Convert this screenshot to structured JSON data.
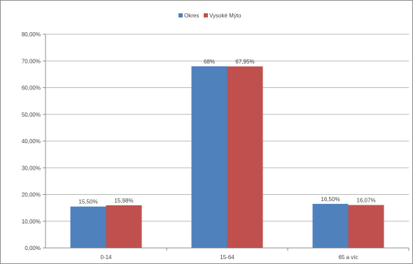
{
  "chart_data": {
    "type": "bar",
    "categories": [
      "0-14",
      "15-64",
      "65 a víc"
    ],
    "series": [
      {
        "name": "Okres",
        "color": "#4f81bd",
        "values": [
          15.5,
          68.0,
          16.5
        ],
        "labels": [
          "15,50%",
          "68%",
          "16,50%"
        ]
      },
      {
        "name": "Vysoké Mýto",
        "color": "#c0504d",
        "values": [
          15.98,
          67.95,
          16.07
        ],
        "labels": [
          "15,98%",
          "67,95%",
          "16,07%"
        ]
      }
    ],
    "ylim": [
      0,
      80
    ],
    "yticks": [
      0,
      10,
      20,
      30,
      40,
      50,
      60,
      70,
      80
    ],
    "ytick_labels": [
      "0,00%",
      "10,00%",
      "20,00%",
      "30,00%",
      "40,00%",
      "50,00%",
      "60,00%",
      "70,00%",
      "80,00%"
    ],
    "title": "",
    "xlabel": "",
    "ylabel": "",
    "grid": true,
    "legend_position": "top-center"
  }
}
